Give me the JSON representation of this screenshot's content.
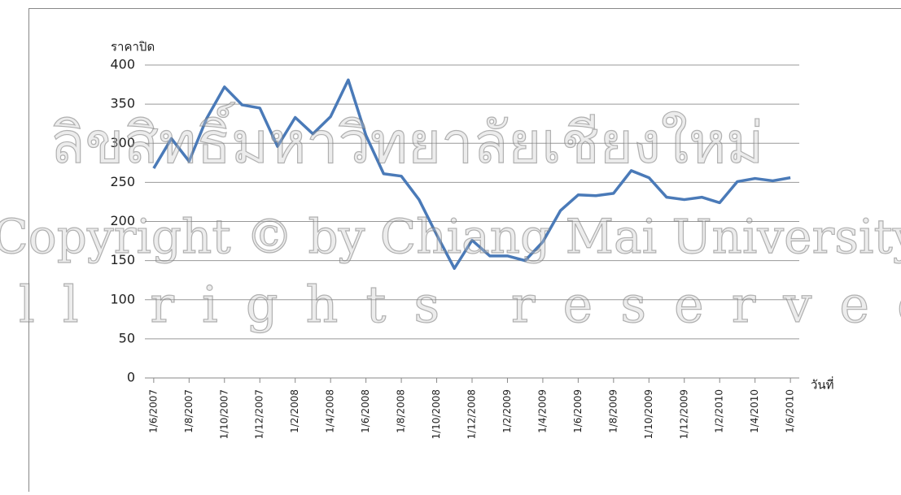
{
  "chart_data": {
    "type": "line",
    "y_label": "ราคาปิด",
    "x_label": "วันที่",
    "categories": [
      "1/6/2007",
      null,
      "1/8/2007",
      null,
      "1/10/2007",
      null,
      "1/12/2007",
      null,
      "1/2/2008",
      null,
      "1/4/2008",
      null,
      "1/6/2008",
      null,
      "1/8/2008",
      null,
      "1/10/2008",
      null,
      "1/12/2008",
      null,
      "1/2/2009",
      null,
      "1/4/2009",
      null,
      "1/6/2009",
      null,
      "1/8/2009",
      null,
      "1/10/2009",
      null,
      "1/12/2009",
      null,
      "1/2/2010",
      null,
      "1/4/2010",
      null,
      "1/6/2010"
    ],
    "series": [
      {
        "name": "ราคาปิด",
        "color": "#4a7ab8",
        "values": [
          268,
          306,
          277,
          332,
          372,
          349,
          345,
          296,
          333,
          312,
          334,
          381,
          310,
          261,
          258,
          228,
          183,
          140,
          176,
          156,
          156,
          150,
          174,
          214,
          234,
          233,
          236,
          265,
          256,
          231,
          228,
          231,
          224,
          251,
          255,
          252,
          256
        ]
      }
    ],
    "ylim": [
      0,
      400
    ],
    "yticks": [
      0,
      50,
      100,
      150,
      200,
      250,
      300,
      350,
      400
    ],
    "grid": true
  },
  "watermark": [
    "ลิขสิทธิ์มหาวิทยาลัยเชียงใหม่",
    "Copyright © by Chiang Mai University",
    "All rights reserved"
  ]
}
